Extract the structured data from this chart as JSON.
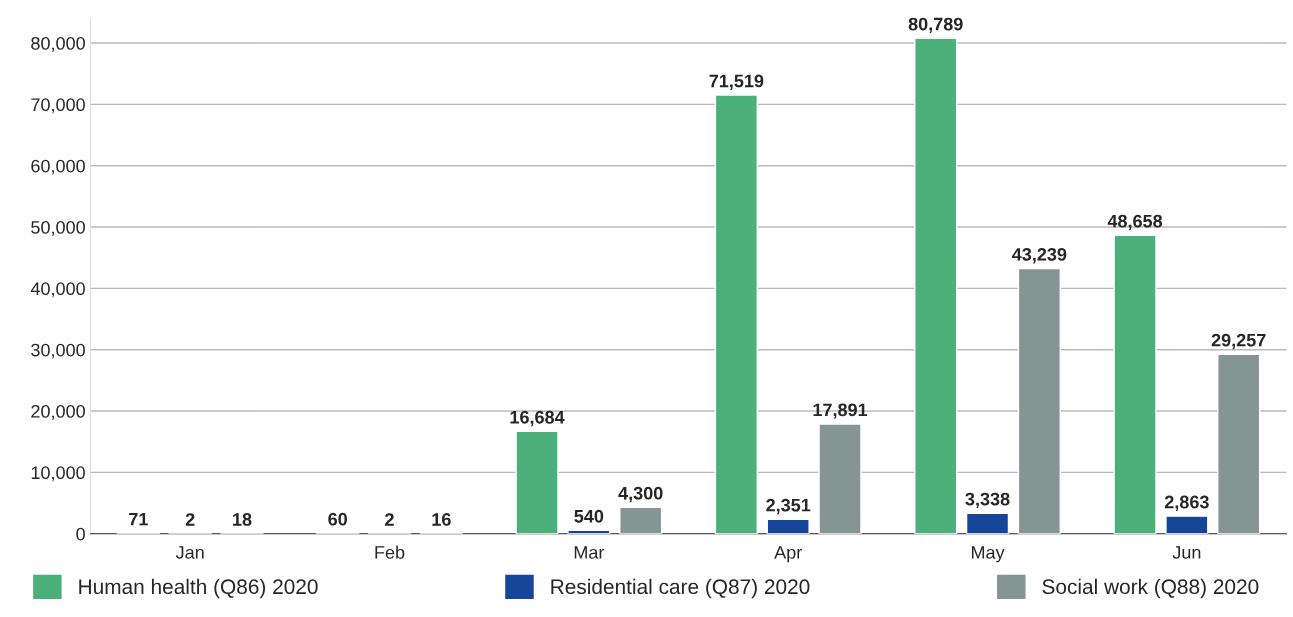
{
  "chart_data": {
    "type": "bar",
    "categories": [
      "Jan",
      "Feb",
      "Mar",
      "Apr",
      "May",
      "Jun"
    ],
    "series": [
      {
        "name": "Human health (Q86) 2020",
        "color": "#4bb07a",
        "values": [
          71,
          60,
          16684,
          71519,
          80789,
          48658
        ],
        "value_labels": [
          "71",
          "60",
          "16,684",
          "71,519",
          "80,789",
          "48,658"
        ]
      },
      {
        "name": "Residential care (Q87) 2020",
        "color": "#16459a",
        "values": [
          2,
          2,
          540,
          2351,
          3338,
          2863
        ],
        "value_labels": [
          "2",
          "2",
          "540",
          "2,351",
          "3,338",
          "2,863"
        ]
      },
      {
        "name": "Social work (Q88) 2020",
        "color": "#859593",
        "values": [
          18,
          16,
          4300,
          17891,
          43239,
          29257
        ],
        "value_labels": [
          "18",
          "16",
          "4,300",
          "17,891",
          "43,239",
          "29,257"
        ]
      }
    ],
    "ylim": [
      0,
      84000
    ],
    "yticks": [
      {
        "value": 0,
        "label": "0"
      },
      {
        "value": 10000,
        "label": "10,000"
      },
      {
        "value": 20000,
        "label": "20,000"
      },
      {
        "value": 30000,
        "label": "30,000"
      },
      {
        "value": 40000,
        "label": "40,000"
      },
      {
        "value": 50000,
        "label": "50,000"
      },
      {
        "value": 60000,
        "label": "60,000"
      },
      {
        "value": 70000,
        "label": "70,000"
      },
      {
        "value": 80000,
        "label": "80,000"
      }
    ],
    "grid": "y",
    "legend": "bottom"
  }
}
